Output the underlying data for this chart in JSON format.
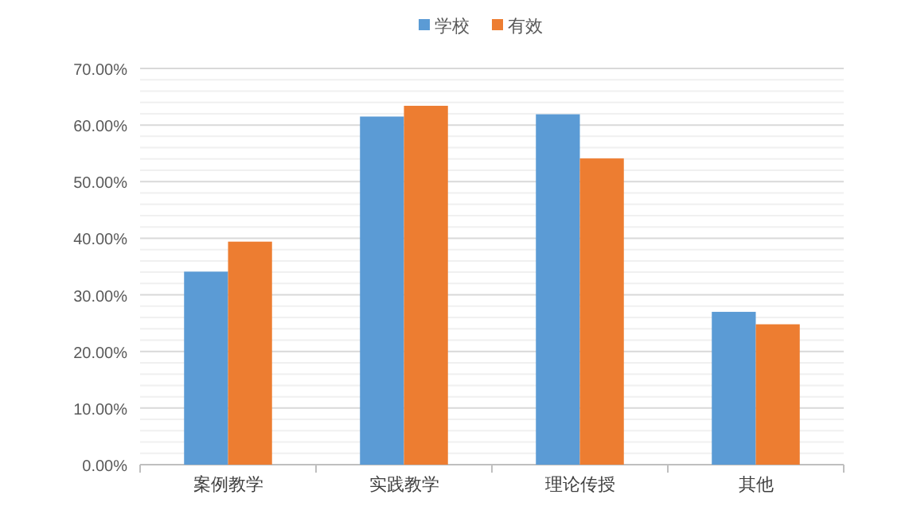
{
  "chart_data": {
    "type": "bar",
    "categories": [
      "案例教学",
      "实践教学",
      "理论传授",
      "其他"
    ],
    "series": [
      {
        "name": "学校",
        "color": "#5b9bd5",
        "values": [
          34.1,
          61.5,
          61.9,
          27.0
        ]
      },
      {
        "name": "有效",
        "color": "#ed7d31",
        "values": [
          39.4,
          63.4,
          54.1,
          24.8
        ]
      }
    ],
    "ylim": [
      0,
      70
    ],
    "yticks": [
      {
        "value": 0,
        "label": "0.00%"
      },
      {
        "value": 2,
        "label": null
      },
      {
        "value": 4,
        "label": null
      },
      {
        "value": 6,
        "label": null
      },
      {
        "value": 8,
        "label": null
      },
      {
        "value": 10,
        "label": "10.00%"
      },
      {
        "value": 12,
        "label": null
      },
      {
        "value": 14,
        "label": null
      },
      {
        "value": 16,
        "label": null
      },
      {
        "value": 18,
        "label": null
      },
      {
        "value": 20,
        "label": "20.00%"
      },
      {
        "value": 22,
        "label": null
      },
      {
        "value": 24,
        "label": null
      },
      {
        "value": 26,
        "label": null
      },
      {
        "value": 28,
        "label": null
      },
      {
        "value": 30,
        "label": "30.00%"
      },
      {
        "value": 32,
        "label": null
      },
      {
        "value": 34,
        "label": null
      },
      {
        "value": 36,
        "label": null
      },
      {
        "value": 38,
        "label": null
      },
      {
        "value": 40,
        "label": "40.00%"
      },
      {
        "value": 42,
        "label": null
      },
      {
        "value": 44,
        "label": null
      },
      {
        "value": 46,
        "label": null
      },
      {
        "value": 48,
        "label": null
      },
      {
        "value": 50,
        "label": "50.00%"
      },
      {
        "value": 52,
        "label": null
      },
      {
        "value": 54,
        "label": null
      },
      {
        "value": 56,
        "label": null
      },
      {
        "value": 58,
        "label": null
      },
      {
        "value": 60,
        "label": "60.00%"
      },
      {
        "value": 62,
        "label": null
      },
      {
        "value": 64,
        "label": null
      },
      {
        "value": 66,
        "label": null
      },
      {
        "value": 68,
        "label": null
      },
      {
        "value": 70,
        "label": "70.00%"
      }
    ],
    "grid": "y",
    "legend": "top"
  }
}
